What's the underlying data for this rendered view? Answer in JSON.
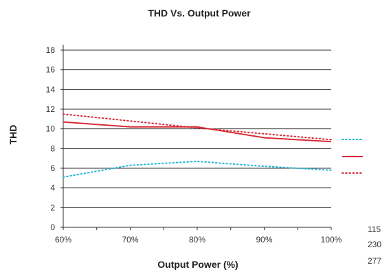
{
  "chart_data": {
    "type": "line",
    "title": "THD Vs. Output Power",
    "xlabel": "Output Power (%)",
    "ylabel": "THD",
    "categories": [
      "60%",
      "70%",
      "80%",
      "90%",
      "100%"
    ],
    "x": [
      60,
      70,
      80,
      90,
      100
    ],
    "ylim": [
      0,
      18
    ],
    "yticks": [
      0,
      2,
      4,
      6,
      8,
      10,
      12,
      14,
      16,
      18
    ],
    "grid": true,
    "legend_placement": "right",
    "series": [
      {
        "name": "115",
        "color": "#1fb6d6",
        "style": "dotted",
        "values": [
          5.1,
          6.3,
          6.7,
          6.2,
          5.8
        ]
      },
      {
        "name": "230",
        "color": "#d62b36",
        "style": "solid",
        "values": [
          10.7,
          10.2,
          10.2,
          9.1,
          8.7
        ]
      },
      {
        "name": "277",
        "color": "#d62b36",
        "style": "dotted",
        "values": [
          11.5,
          10.8,
          10.1,
          9.5,
          8.9
        ]
      }
    ]
  }
}
